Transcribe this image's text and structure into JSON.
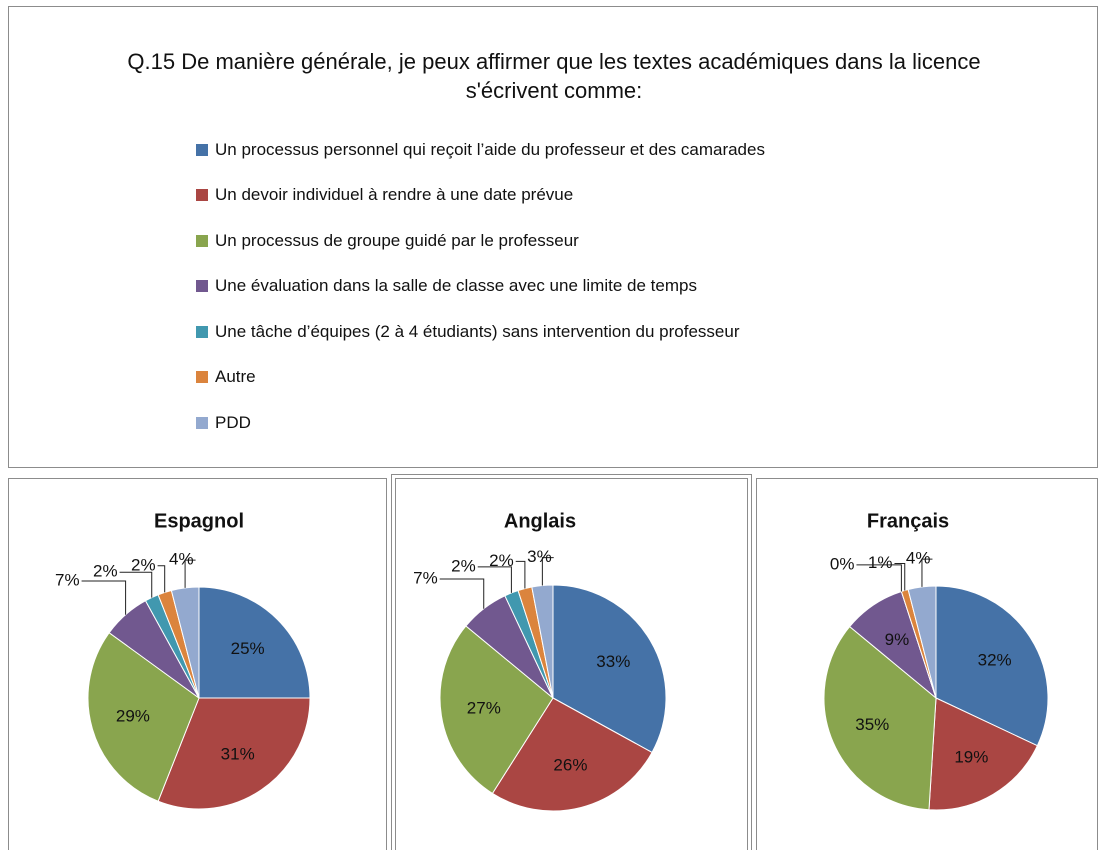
{
  "title": "Q.15 De manière générale, je peux affirmer que les textes académiques dans la licence s'écrivent comme:",
  "categories": [
    "Un processus personnel qui reçoit l’aide du professeur et des camarades",
    "Un devoir individuel à rendre à une date prévue",
    "Un processus de groupe guidé par le professeur",
    "Une évaluation dans la salle de classe avec une limite de temps",
    "Une tâche d’équipes (2 à 4 étudiants) sans intervention du professeur",
    "Autre",
    "PDD"
  ],
  "colors": [
    "#4572a7",
    "#aa4643",
    "#89a54e",
    "#71588f",
    "#4198af",
    "#db843d",
    "#93a9cf"
  ],
  "chart_data": [
    {
      "type": "pie",
      "title": "Espagnol",
      "values": [
        25,
        31,
        29,
        7,
        2,
        2,
        4
      ],
      "value_labels": [
        "25%",
        "31%",
        "29%",
        "7%",
        "2%",
        "2%",
        "4%"
      ]
    },
    {
      "type": "pie",
      "title": "Anglais",
      "values": [
        33,
        26,
        27,
        7,
        2,
        2,
        3
      ],
      "value_labels": [
        "33%",
        "26%",
        "27%",
        "7%",
        "2%",
        "2%",
        "3%"
      ]
    },
    {
      "type": "pie",
      "title": "Français",
      "values": [
        32,
        19,
        35,
        9,
        0,
        1,
        4
      ],
      "value_labels": [
        "32%",
        "19%",
        "35%",
        "9%",
        "0%",
        "1%",
        "4%"
      ]
    }
  ]
}
